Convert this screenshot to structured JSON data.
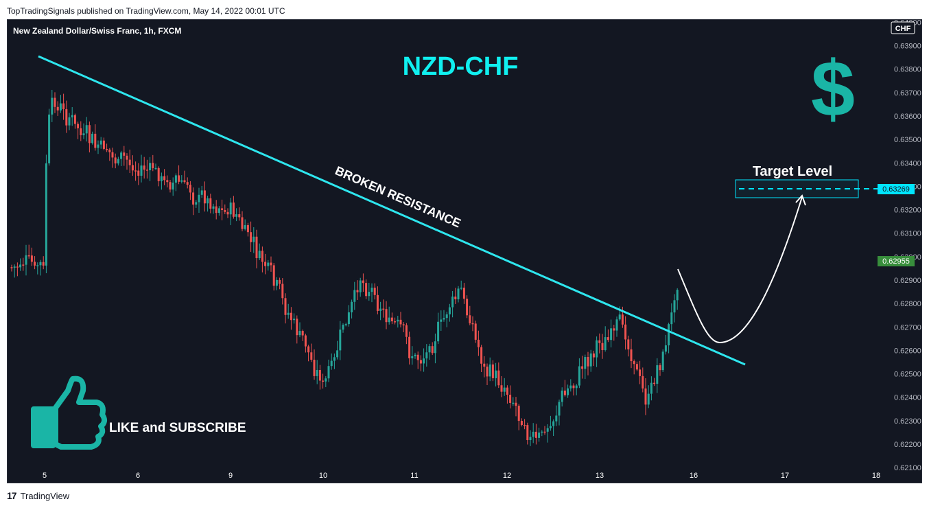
{
  "header": {
    "published": "TopTradingSignals published on TradingView.com, May 14, 2022 00:01 UTC"
  },
  "footer": {
    "brand": "TradingView",
    "logo": "17"
  },
  "chart_data": {
    "type": "candlestick",
    "symbol": "New Zealand Dollar/Swiss Franc, 1h, FXCM",
    "currency": "CHF",
    "title": "NZD-CHF",
    "annotations": {
      "trendline_label": "BROKEN RESISTANCE",
      "target_label": "Target Level",
      "cta_label": "LIKE and SUBSCRIBE",
      "dollar": "$"
    },
    "target_price": "0.63269",
    "last_price": "0.62955",
    "y_ticks": [
      "0.64000",
      "0.63900",
      "0.63800",
      "0.63700",
      "0.63600",
      "0.63500",
      "0.63400",
      "0.63300",
      "0.63200",
      "0.63100",
      "0.63000",
      "0.62900",
      "0.62800",
      "0.62700",
      "0.62600",
      "0.62500",
      "0.62400",
      "0.62300",
      "0.62200",
      "0.62100"
    ],
    "x_ticks": [
      "5",
      "6",
      "9",
      "10",
      "11",
      "12",
      "13",
      "16",
      "17",
      "18"
    ],
    "ylim": [
      0.6203,
      0.6401
    ],
    "colors": {
      "up": "#26a69a",
      "down": "#ef5350",
      "trend": "#2ee6ee",
      "last": "#388e3c",
      "target": "#00e5ff"
    },
    "key_points": [
      {
        "x": "5",
        "price": 0.637
      },
      {
        "x": "5.5",
        "price": 0.6345
      },
      {
        "x": "6",
        "price": 0.6338
      },
      {
        "x": "9",
        "price": 0.632
      },
      {
        "x": "9.5",
        "price": 0.6285
      },
      {
        "x": "10",
        "price": 0.6245
      },
      {
        "x": "10.5",
        "price": 0.6292
      },
      {
        "x": "11",
        "price": 0.6255
      },
      {
        "x": "11.5",
        "price": 0.6285
      },
      {
        "x": "11.7",
        "price": 0.6255
      },
      {
        "x": "12",
        "price": 0.6242
      },
      {
        "x": "12.3",
        "price": 0.6218
      },
      {
        "x": "12.6",
        "price": 0.6238
      },
      {
        "x": "13",
        "price": 0.6265
      },
      {
        "x": "13.3",
        "price": 0.627
      },
      {
        "x": "13.5",
        "price": 0.6238
      },
      {
        "x": "13.8",
        "price": 0.6266
      },
      {
        "x": "14",
        "price": 0.62955
      }
    ]
  }
}
